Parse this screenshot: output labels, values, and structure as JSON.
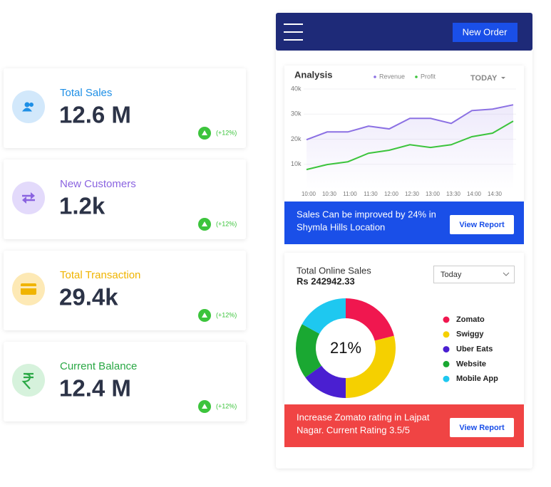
{
  "stat_cards": [
    {
      "title": "Total Sales",
      "value": "12.6 M",
      "change": "(+12%)",
      "color": "#1e8fe6",
      "icon_bg": "#d2e8fb"
    },
    {
      "title": "New Customers",
      "value": "1.2k",
      "change": "(+12%)",
      "color": "#8a63e0",
      "icon_bg": "#e3dafb"
    },
    {
      "title": "Total Transaction",
      "value": "29.4k",
      "change": "(+12%)",
      "color": "#f0b400",
      "icon_bg": "#fde9b5"
    },
    {
      "title": "Current Balance",
      "value": "12.4 M",
      "change": "(+12%)",
      "color": "#2aa845",
      "icon_bg": "#d6f2dc"
    }
  ],
  "header": {
    "button": "New Order"
  },
  "chart_data": [
    {
      "type": "line",
      "title": "Analysis",
      "filter": "TODAY",
      "categories": [
        "10:00",
        "10:30",
        "11:00",
        "11:30",
        "12:00",
        "12:30",
        "13:00",
        "13:30",
        "14:00",
        "14:30",
        null
      ],
      "series": [
        {
          "name": "Revenue",
          "color": "#8b70e3",
          "values": [
            19800,
            22900,
            22900,
            25200,
            24100,
            28300,
            28300,
            26300,
            31400,
            32000,
            33700
          ]
        },
        {
          "name": "Profit",
          "color": "#3cc43c",
          "values": [
            7900,
            9900,
            11000,
            14400,
            15600,
            17800,
            16700,
            17800,
            21000,
            22400,
            27200
          ]
        }
      ],
      "ylim": [
        0,
        40000
      ],
      "yticks": [
        {
          "value": 10000,
          "label": "10k"
        },
        {
          "value": 20000,
          "label": "20k"
        },
        {
          "value": 30000,
          "label": "30k"
        },
        {
          "value": 40000,
          "label": "40k"
        }
      ]
    },
    {
      "type": "pie",
      "title": "Total Online Sales",
      "subtitle": "Rs 242942.33",
      "filter": "Today",
      "center_label": "21%",
      "categories": [
        "Zomato",
        "Swiggy",
        "Uber Eats",
        "Website",
        "Mobile App"
      ],
      "values": [
        21,
        29,
        15,
        18,
        17
      ],
      "colors": [
        "#f0174f",
        "#f5d000",
        "#4a1fd1",
        "#1aa832",
        "#1ec8f0"
      ]
    }
  ],
  "analysis_banner": {
    "text_lines": [
      "Sales Can be improved by 24% in",
      "Shymla Hills Location"
    ],
    "button": "View Report"
  },
  "sales_banner": {
    "text_lines": [
      "Increase Zomato rating in Lajpat",
      "Nagar. Current Rating 3.5/5"
    ],
    "button": "View Report"
  }
}
